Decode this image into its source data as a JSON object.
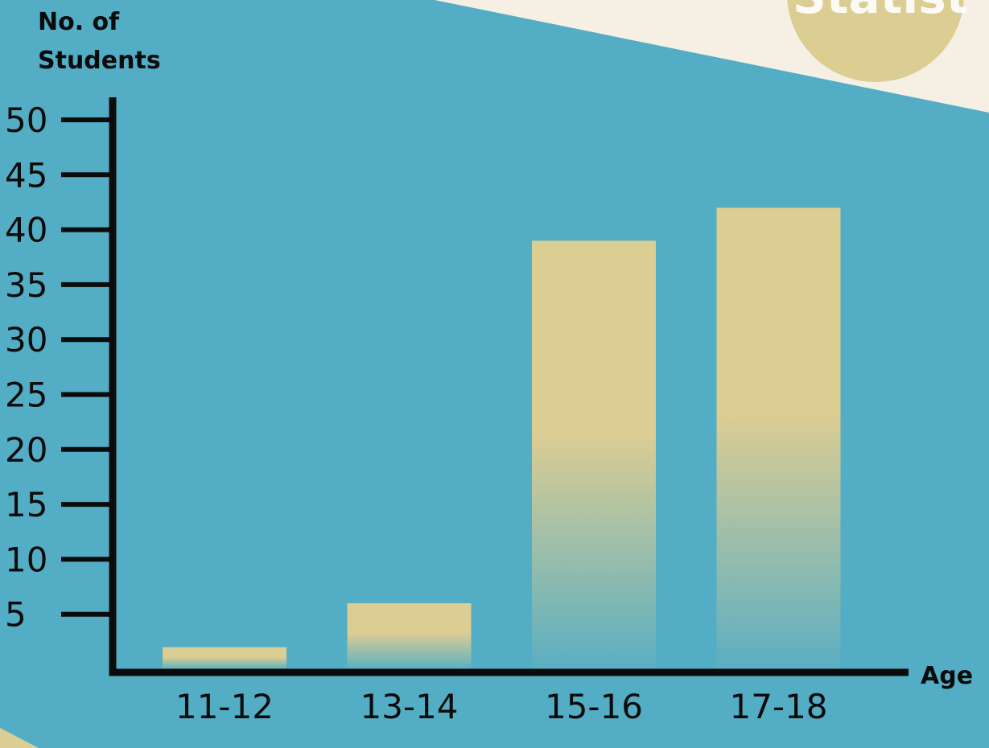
{
  "watermark": "Statist",
  "colors": {
    "background": "#53adc4",
    "page_corner": "#f6f0e4",
    "bar": "#dccd93",
    "axis": "#0b0b0b",
    "badge": "#dccd93"
  },
  "chart_data": {
    "type": "bar",
    "title": "",
    "ylabel_line1": "No. of",
    "ylabel_line2": "Students",
    "xlabel": "Age",
    "categories": [
      "11-12",
      "13-14",
      "15-16",
      "17-18"
    ],
    "values": [
      2,
      6,
      39,
      42
    ],
    "yticks": [
      "5",
      "10",
      "15",
      "20",
      "25",
      "30",
      "35",
      "40",
      "45",
      "50"
    ],
    "ylim": [
      0,
      50
    ],
    "grid": false,
    "legend": "none"
  }
}
